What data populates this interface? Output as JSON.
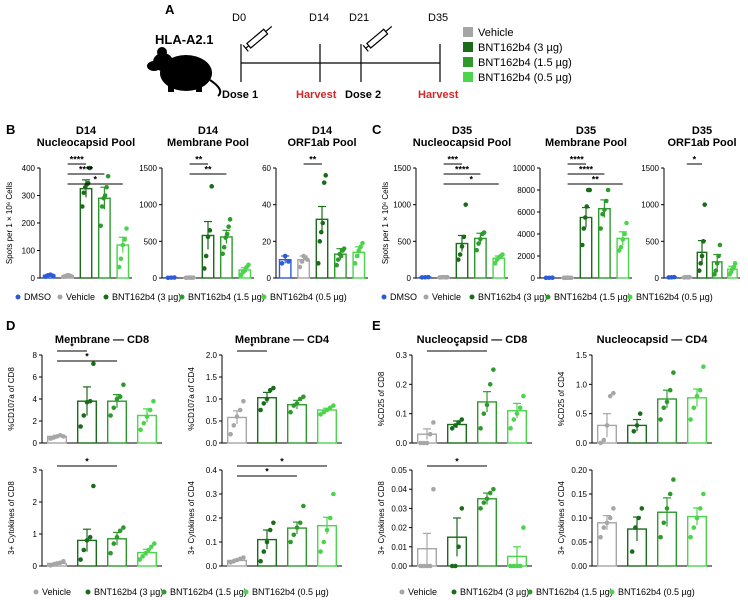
{
  "panel_letters": [
    "A",
    "B",
    "C",
    "D",
    "E"
  ],
  "schematic": {
    "title": "HLA-A2.1",
    "days": [
      "D0",
      "D14",
      "D21",
      "D35"
    ],
    "events": {
      "dose1": "Dose 1",
      "harvest1": "Harvest",
      "dose2": "Dose 2",
      "harvest2": "Harvest"
    },
    "legend": [
      {
        "label": "Vehicle",
        "color": "#a6a6a6"
      },
      {
        "label": "BNT162b4 (3 µg)",
        "color": "#1a6b1a"
      },
      {
        "label": "BNT162b4 (1.5 µg)",
        "color": "#2e9a2e"
      },
      {
        "label": "BNT162b4 (0.5 µg)",
        "color": "#4cd44c"
      }
    ]
  },
  "colors": {
    "dmso": "#2d5bd6",
    "vehicle": "#a6a6a6",
    "d3": "#1a6b1a",
    "d15": "#2e9a2e",
    "d05": "#4cd44c",
    "harvest": "#d62828"
  },
  "legend_bc": [
    "DMSO",
    "Vehicle",
    "BNT162b4 (3 µg)",
    "BNT162b4 (1.5 µg)",
    "BNT162b4 (0.5 µg)"
  ],
  "legend_de": [
    "Vehicle",
    "BNT162b4 (3 µg)",
    "BNT162b4 (1.5 µg)",
    "BNT162b4 (0.5 µg)"
  ],
  "chart_data": [
    {
      "id": "b1",
      "type": "bar",
      "title": [
        "D14",
        "Nucleocapsid Pool"
      ],
      "ylabel": "Spots per 1 × 10⁶ Cells",
      "ylim": [
        0,
        400
      ],
      "yticks": [
        0,
        100,
        200,
        300,
        400
      ],
      "groups": [
        "dmso",
        "vehicle",
        "d3",
        "d15",
        "d05"
      ],
      "means": [
        10,
        8,
        325,
        290,
        120
      ],
      "errors": [
        3,
        3,
        32,
        40,
        28
      ],
      "points": [
        [
          5,
          10,
          12,
          8
        ],
        [
          5,
          7,
          10,
          9,
          6
        ],
        [
          260,
          310,
          330,
          340,
          345,
          400
        ],
        [
          190,
          260,
          290,
          300,
          330,
          370
        ],
        [
          40,
          70,
          120,
          140,
          180
        ]
      ],
      "sig": [
        {
          "from": 1,
          "to": 2,
          "label": "****"
        },
        {
          "from": 1,
          "to": 3,
          "label": "****"
        },
        {
          "from": 1,
          "to": 4,
          "label": "*"
        }
      ]
    },
    {
      "id": "b2",
      "type": "bar",
      "title": [
        "D14",
        "Membrane Pool"
      ],
      "ylabel": "",
      "ylim": [
        0,
        1500
      ],
      "yticks": [
        0,
        500,
        1000,
        1500
      ],
      "groups": [
        "dmso",
        "vehicle",
        "d3",
        "d15",
        "d05"
      ],
      "means": [
        5,
        5,
        580,
        560,
        110
      ],
      "errors": [
        2,
        2,
        190,
        90,
        30
      ],
      "points": [
        [
          3,
          5,
          6
        ],
        [
          3,
          5,
          6,
          4,
          5
        ],
        [
          130,
          300,
          560,
          650,
          1250
        ],
        [
          330,
          420,
          550,
          600,
          700,
          800
        ],
        [
          40,
          80,
          100,
          150,
          180
        ]
      ],
      "sig": [
        {
          "from": 1,
          "to": 2,
          "label": "**"
        },
        {
          "from": 1,
          "to": 3,
          "label": "**"
        }
      ]
    },
    {
      "id": "b3",
      "type": "bar",
      "title": [
        "D14",
        "ORF1ab Pool"
      ],
      "ylabel": "",
      "ylim": [
        0,
        60
      ],
      "yticks": [
        0,
        20,
        40,
        60
      ],
      "groups": [
        "dmso",
        "vehicle",
        "d3",
        "d15",
        "d05"
      ],
      "means": [
        10,
        10,
        32,
        13,
        14
      ],
      "errors": [
        2,
        2,
        7,
        3,
        3
      ],
      "points": [
        [
          8,
          12,
          9
        ],
        [
          6,
          9,
          12,
          11,
          10
        ],
        [
          8,
          20,
          25,
          30,
          52,
          56
        ],
        [
          7,
          10,
          13,
          12,
          15,
          16
        ],
        [
          8,
          12,
          15,
          17,
          19
        ]
      ],
      "sig": [
        {
          "from": 1,
          "to": 2,
          "label": "**"
        }
      ]
    },
    {
      "id": "c1",
      "type": "bar",
      "title": [
        "D35",
        "Nucleocapsid Pool"
      ],
      "ylabel": "Spots per 1 × 10⁶ Cells",
      "ylim": [
        0,
        1500
      ],
      "yticks": [
        0,
        500,
        1000,
        1500
      ],
      "groups": [
        "dmso",
        "vehicle",
        "d3",
        "d15",
        "d05"
      ],
      "means": [
        10,
        10,
        470,
        540,
        270
      ],
      "errors": [
        3,
        3,
        110,
        70,
        30
      ],
      "points": [
        [
          8,
          10,
          12
        ],
        [
          8,
          10,
          12,
          9,
          11
        ],
        [
          250,
          320,
          430,
          560,
          1000
        ],
        [
          380,
          470,
          530,
          600,
          620
        ],
        [
          200,
          250,
          280,
          300,
          320
        ]
      ],
      "sig": [
        {
          "from": 1,
          "to": 2,
          "label": "***"
        },
        {
          "from": 1,
          "to": 3,
          "label": "****"
        },
        {
          "from": 1,
          "to": 4,
          "label": "*"
        }
      ]
    },
    {
      "id": "c2",
      "type": "bar",
      "title": [
        "D35",
        "Membrane Pool"
      ],
      "ylabel": "",
      "ylim": [
        0,
        10000
      ],
      "yticks": [
        0,
        2000,
        4000,
        6000,
        8000,
        10000
      ],
      "groups": [
        "dmso",
        "vehicle",
        "d3",
        "d15",
        "d05"
      ],
      "means": [
        20,
        20,
        5500,
        6300,
        3600
      ],
      "errors": [
        5,
        5,
        900,
        800,
        600
      ],
      "points": [
        [
          15,
          20,
          25
        ],
        [
          15,
          20,
          25,
          18,
          22
        ],
        [
          3000,
          4500,
          5500,
          6500,
          8000,
          8000
        ],
        [
          4500,
          5800,
          6200,
          7000,
          8000
        ],
        [
          2500,
          2800,
          3500,
          4000,
          5000
        ]
      ],
      "sig": [
        {
          "from": 1,
          "to": 2,
          "label": "****"
        },
        {
          "from": 1,
          "to": 3,
          "label": "****"
        },
        {
          "from": 1,
          "to": 4,
          "label": "**"
        }
      ]
    },
    {
      "id": "c3",
      "type": "bar",
      "title": [
        "D35",
        "ORF1ab Pool"
      ],
      "ylabel": "",
      "ylim": [
        0,
        1500
      ],
      "yticks": [
        0,
        500,
        1000,
        1500
      ],
      "groups": [
        "dmso",
        "vehicle",
        "d3",
        "d15",
        "d05"
      ],
      "means": [
        10,
        10,
        350,
        220,
        120
      ],
      "errors": [
        3,
        3,
        160,
        100,
        40
      ],
      "points": [
        [
          8,
          10,
          12
        ],
        [
          8,
          10,
          12,
          9,
          11
        ],
        [
          100,
          200,
          300,
          500,
          1000
        ],
        [
          50,
          100,
          200,
          300,
          450
        ],
        [
          50,
          80,
          120,
          150,
          200
        ]
      ],
      "sig": [
        {
          "from": 1,
          "to": 2,
          "label": "*"
        }
      ]
    },
    {
      "id": "d1",
      "type": "bar",
      "title": [
        "Membrane — CD8"
      ],
      "ylabel": "%CD107a of CD8",
      "ylim": [
        0,
        8
      ],
      "yticks": [
        0,
        2,
        4,
        6,
        8
      ],
      "groups": [
        "vehicle",
        "d3",
        "d15",
        "d05"
      ],
      "means": [
        0.6,
        3.8,
        3.8,
        2.5
      ],
      "errors": [
        0.1,
        1.3,
        0.6,
        0.6
      ],
      "points": [
        [
          0.4,
          0.5,
          0.6,
          0.7,
          0.6
        ],
        [
          1.5,
          2.5,
          3.7,
          3.8,
          7.2
        ],
        [
          2.5,
          3.2,
          4.0,
          4.2,
          5.3
        ],
        [
          1.2,
          1.8,
          2.4,
          3.0,
          3.8
        ]
      ],
      "sig": [
        {
          "from": 0,
          "to": 1,
          "label": "*"
        },
        {
          "from": 0,
          "to": 2,
          "label": "*"
        }
      ]
    },
    {
      "id": "d2",
      "type": "bar",
      "title": [
        "Membrane — CD4"
      ],
      "ylabel": "%CD107a of CD4",
      "ylim": [
        0,
        2.0
      ],
      "yticks": [
        0,
        0.5,
        1.0,
        1.5,
        2.0
      ],
      "groups": [
        "vehicle",
        "d3",
        "d15",
        "d05"
      ],
      "means": [
        0.58,
        1.03,
        0.87,
        0.75
      ],
      "errors": [
        0.15,
        0.12,
        0.1,
        0.04
      ],
      "points": [
        [
          0.2,
          0.4,
          0.6,
          0.75,
          0.95
        ],
        [
          0.75,
          0.9,
          1.0,
          1.2,
          1.25
        ],
        [
          0.7,
          0.85,
          0.9,
          1.0,
          1.05
        ],
        [
          0.65,
          0.7,
          0.75,
          0.8,
          0.85
        ]
      ],
      "sig": [
        {
          "from": 0,
          "to": 1,
          "label": "*"
        }
      ]
    },
    {
      "id": "d3",
      "type": "bar",
      "title": [],
      "ylabel": "3+ Cytokines of CD8",
      "ylim": [
        0,
        3
      ],
      "yticks": [
        0,
        1,
        2,
        3
      ],
      "groups": [
        "vehicle",
        "d3",
        "d15",
        "d05"
      ],
      "means": [
        0.08,
        0.8,
        0.85,
        0.42
      ],
      "errors": [
        0.03,
        0.35,
        0.2,
        0.1
      ],
      "points": [
        [
          0.02,
          0.05,
          0.08,
          0.1,
          0.15
        ],
        [
          0.2,
          0.5,
          0.8,
          0.9,
          2.5
        ],
        [
          0.4,
          0.7,
          0.9,
          1.1,
          1.2
        ],
        [
          0.2,
          0.3,
          0.4,
          0.5,
          0.6,
          0.7
        ]
      ],
      "sig": [
        {
          "from": 0,
          "to": 2,
          "label": "*"
        }
      ]
    },
    {
      "id": "d4",
      "type": "bar",
      "title": [],
      "ylabel": "3+ Cytokines of CD4",
      "ylim": [
        0,
        0.4
      ],
      "yticks": [
        0,
        0.1,
        0.2,
        0.3,
        0.4
      ],
      "groups": [
        "vehicle",
        "d3",
        "d15",
        "d05"
      ],
      "means": [
        0.023,
        0.11,
        0.158,
        0.168
      ],
      "errors": [
        0.005,
        0.04,
        0.025,
        0.035
      ],
      "points": [
        [
          0.015,
          0.02,
          0.025,
          0.03,
          0.035
        ],
        [
          0.02,
          0.06,
          0.1,
          0.15,
          0.18
        ],
        [
          0.1,
          0.13,
          0.16,
          0.18,
          0.25
        ],
        [
          0.06,
          0.1,
          0.15,
          0.2,
          0.3
        ]
      ],
      "sig": [
        {
          "from": 0,
          "to": 3,
          "label": "*"
        },
        {
          "from": 0,
          "to": 2,
          "label": "*"
        }
      ]
    },
    {
      "id": "e1",
      "type": "bar",
      "title": [
        "Nucleocapsid — CD8"
      ],
      "ylabel": "%CD25 of CD8",
      "ylim": [
        0,
        0.3
      ],
      "yticks": [
        0,
        0.1,
        0.2,
        0.3
      ],
      "groups": [
        "vehicle",
        "d3",
        "d15",
        "d05"
      ],
      "means": [
        0.03,
        0.063,
        0.14,
        0.11
      ],
      "errors": [
        0.018,
        0.012,
        0.035,
        0.025
      ],
      "points": [
        [
          0.0,
          0.0,
          0.0,
          0.03,
          0.07
        ],
        [
          0.05,
          0.06,
          0.07,
          0.08
        ],
        [
          0.05,
          0.1,
          0.13,
          0.2,
          0.25
        ],
        [
          0.05,
          0.08,
          0.1,
          0.12,
          0.16
        ]
      ],
      "sig": [
        {
          "from": 0,
          "to": 2,
          "label": "*"
        }
      ]
    },
    {
      "id": "e2",
      "type": "bar",
      "title": [
        "Nucleocapsid — CD4"
      ],
      "ylabel": "%CD25 of CD4",
      "ylim": [
        0,
        1.5
      ],
      "yticks": [
        0,
        0.5,
        1.0,
        1.5
      ],
      "groups": [
        "vehicle",
        "d3",
        "d15",
        "d05"
      ],
      "means": [
        0.3,
        0.3,
        0.75,
        0.77
      ],
      "errors": [
        0.2,
        0.1,
        0.15,
        0.15
      ],
      "points": [
        [
          0.0,
          0.05,
          0.3,
          0.8,
          0.85
        ],
        [
          0.2,
          0.3,
          0.5
        ],
        [
          0.4,
          0.6,
          0.7,
          0.9,
          1.2
        ],
        [
          0.4,
          0.6,
          0.8,
          0.9,
          1.3
        ]
      ],
      "sig": []
    },
    {
      "id": "e3",
      "type": "bar",
      "title": [],
      "ylabel": "3+ Cytokines of CD8",
      "ylim": [
        0,
        0.05
      ],
      "yticks": [
        0,
        0.01,
        0.02,
        0.03,
        0.04,
        0.05
      ],
      "groups": [
        "vehicle",
        "d3",
        "d15",
        "d05"
      ],
      "means": [
        0.009,
        0.015,
        0.035,
        0.005
      ],
      "errors": [
        0.008,
        0.01,
        0.003,
        0.005
      ],
      "points": [
        [
          0,
          0,
          0,
          0,
          0.04
        ],
        [
          0,
          0,
          0.01,
          0.03
        ],
        [
          0.03,
          0.033,
          0.035,
          0.038,
          0.04
        ],
        [
          0,
          0,
          0,
          0,
          0.02
        ]
      ],
      "sig": [
        {
          "from": 0,
          "to": 2,
          "label": "*"
        }
      ]
    },
    {
      "id": "e4",
      "type": "bar",
      "title": [],
      "ylabel": "3+ Cytokines of CD4",
      "ylim": [
        0,
        0.2
      ],
      "yticks": [
        0,
        0.05,
        0.1,
        0.15,
        0.2
      ],
      "groups": [
        "vehicle",
        "d3",
        "d15",
        "d05"
      ],
      "means": [
        0.09,
        0.077,
        0.112,
        0.103
      ],
      "errors": [
        0.015,
        0.025,
        0.03,
        0.018
      ],
      "points": [
        [
          0.06,
          0.08,
          0.09,
          0.1,
          0.12
        ],
        [
          0.03,
          0.08,
          0.1,
          0.12
        ],
        [
          0.06,
          0.09,
          0.12,
          0.15,
          0.18
        ],
        [
          0.06,
          0.08,
          0.1,
          0.12,
          0.15
        ]
      ],
      "sig": []
    }
  ]
}
